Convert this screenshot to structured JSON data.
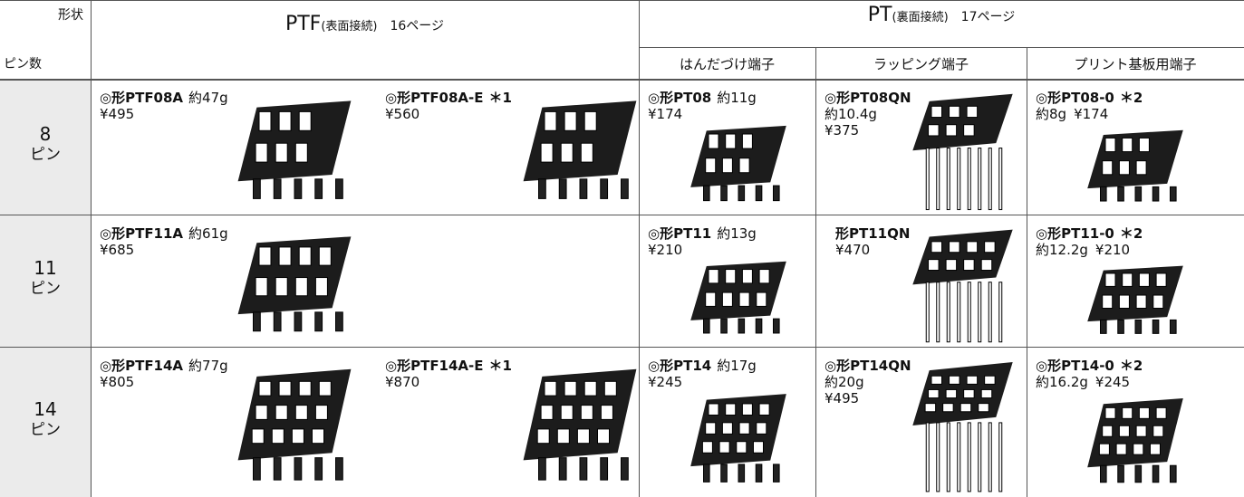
{
  "header": {
    "shape_label": "形状",
    "pins_label": "ピン数",
    "groups": [
      {
        "title": "PTF",
        "connection": "(表面接続)",
        "page": "16ページ"
      },
      {
        "title": "PT",
        "connection": "(裏面接続)",
        "page": "17ページ"
      }
    ],
    "subheaders": [
      "はんだづけ端子",
      "ラッピング端子",
      "プリント基板用端子"
    ]
  },
  "rows": [
    {
      "pins": "8",
      "unit": "ピン",
      "ptf": [
        {
          "model": "◎形PTF08A",
          "weight": "約47g",
          "price": "¥495"
        },
        {
          "model": "◎形PTF08A-E",
          "note": "＊1",
          "price": "¥560"
        }
      ],
      "pt": [
        {
          "model": "◎形PT08",
          "weight": "約11g",
          "price": "¥174"
        },
        {
          "model": "◎形PT08QN",
          "weight": "約10.4g",
          "price": "¥375"
        },
        {
          "model": "◎形PT08-0",
          "note": "＊2",
          "weight": "約8g",
          "price": "¥174"
        }
      ]
    },
    {
      "pins": "11",
      "unit": "ピン",
      "ptf": [
        {
          "model": "◎形PTF11A",
          "weight": "約61g",
          "price": "¥685"
        }
      ],
      "pt": [
        {
          "model": "◎形PT11",
          "weight": "約13g",
          "price": "¥210"
        },
        {
          "model": "形PT11QN",
          "price": "¥470"
        },
        {
          "model": "◎形PT11-0",
          "note": "＊2",
          "weight": "約12.2g",
          "price": "¥210"
        }
      ]
    },
    {
      "pins": "14",
      "unit": "ピン",
      "ptf": [
        {
          "model": "◎形PTF14A",
          "weight": "約77g",
          "price": "¥805"
        },
        {
          "model": "◎形PTF14A-E",
          "note": "＊1",
          "price": "¥870"
        }
      ],
      "pt": [
        {
          "model": "◎形PT14",
          "weight": "約17g",
          "price": "¥245"
        },
        {
          "model": "◎形PT14QN",
          "weight": "約20g",
          "price": "¥495"
        },
        {
          "model": "◎形PT14-0",
          "note": "＊2",
          "weight": "約16.2g",
          "price": "¥245"
        }
      ]
    }
  ]
}
